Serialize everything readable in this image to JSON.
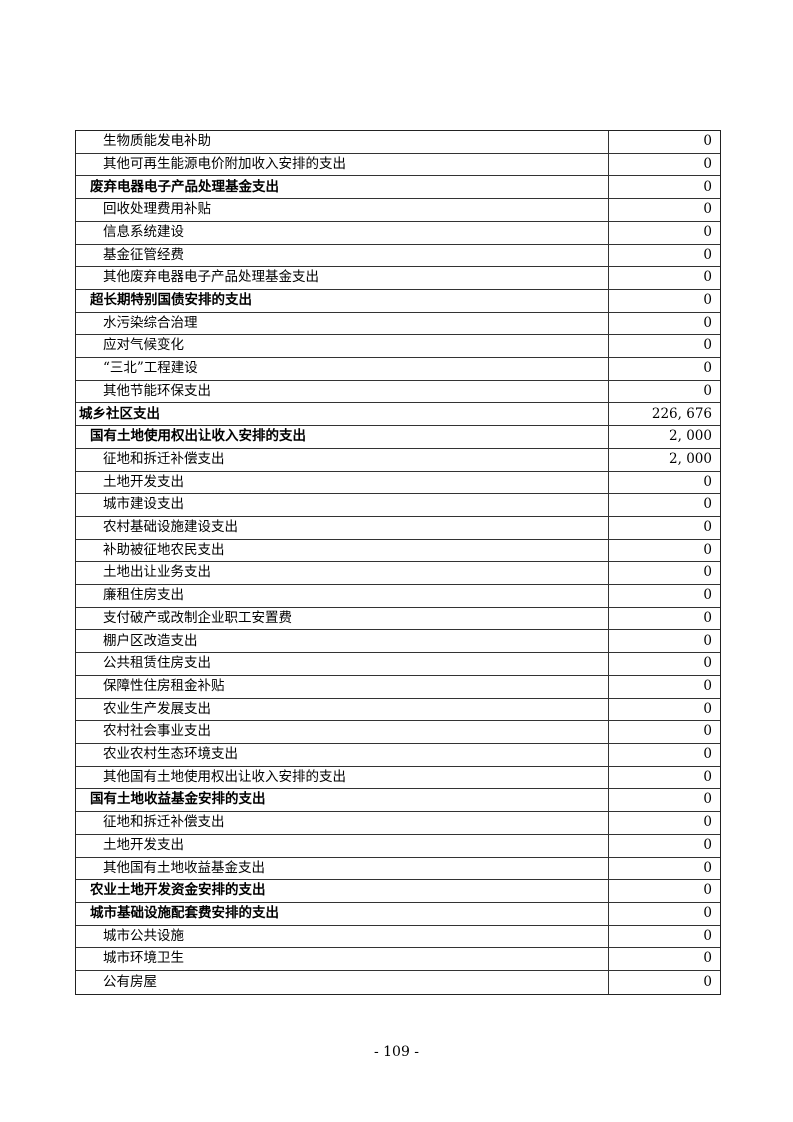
{
  "page": {
    "background_color": "#ffffff",
    "text_color": "#000000",
    "border_color": "#333333",
    "footer": {
      "page_number": "- 109 -"
    }
  },
  "table": {
    "columns": [
      "item",
      "amount"
    ],
    "rows": [
      {
        "label": "生物质能发电补助",
        "value": "0",
        "level": 2,
        "bold": false
      },
      {
        "label": "其他可再生能源电价附加收入安排的支出",
        "value": "0",
        "level": 2,
        "bold": false
      },
      {
        "label": "废弃电器电子产品处理基金支出",
        "value": "0",
        "level": 1,
        "bold": true
      },
      {
        "label": "回收处理费用补贴",
        "value": "0",
        "level": 2,
        "bold": false
      },
      {
        "label": "信息系统建设",
        "value": "0",
        "level": 2,
        "bold": false
      },
      {
        "label": "基金征管经费",
        "value": "0",
        "level": 2,
        "bold": false
      },
      {
        "label": "其他废弃电器电子产品处理基金支出",
        "value": "0",
        "level": 2,
        "bold": false
      },
      {
        "label": "超长期特别国债安排的支出",
        "value": "0",
        "level": 1,
        "bold": true
      },
      {
        "label": "水污染综合治理",
        "value": "0",
        "level": 2,
        "bold": false
      },
      {
        "label": "应对气候变化",
        "value": "0",
        "level": 2,
        "bold": false
      },
      {
        "label": "“三北”工程建设",
        "value": "0",
        "level": 2,
        "bold": false
      },
      {
        "label": "其他节能环保支出",
        "value": "0",
        "level": 2,
        "bold": false
      },
      {
        "label": "城乡社区支出",
        "value": "226, 676",
        "level": 0,
        "bold": true
      },
      {
        "label": "国有土地使用权出让收入安排的支出",
        "value": "2, 000",
        "level": 1,
        "bold": true
      },
      {
        "label": "征地和拆迁补偿支出",
        "value": "2, 000",
        "level": 2,
        "bold": false
      },
      {
        "label": "土地开发支出",
        "value": "0",
        "level": 2,
        "bold": false
      },
      {
        "label": "城市建设支出",
        "value": "0",
        "level": 2,
        "bold": false
      },
      {
        "label": "农村基础设施建设支出",
        "value": "0",
        "level": 2,
        "bold": false
      },
      {
        "label": "补助被征地农民支出",
        "value": "0",
        "level": 2,
        "bold": false
      },
      {
        "label": "土地出让业务支出",
        "value": "0",
        "level": 2,
        "bold": false
      },
      {
        "label": "廉租住房支出",
        "value": "0",
        "level": 2,
        "bold": false
      },
      {
        "label": "支付破产或改制企业职工安置费",
        "value": "0",
        "level": 2,
        "bold": false
      },
      {
        "label": "棚户区改造支出",
        "value": "0",
        "level": 2,
        "bold": false
      },
      {
        "label": "公共租赁住房支出",
        "value": "0",
        "level": 2,
        "bold": false
      },
      {
        "label": "保障性住房租金补贴",
        "value": "0",
        "level": 2,
        "bold": false
      },
      {
        "label": "农业生产发展支出",
        "value": "0",
        "level": 2,
        "bold": false
      },
      {
        "label": "农村社会事业支出",
        "value": "0",
        "level": 2,
        "bold": false
      },
      {
        "label": "农业农村生态环境支出",
        "value": "0",
        "level": 2,
        "bold": false
      },
      {
        "label": "其他国有土地使用权出让收入安排的支出",
        "value": "0",
        "level": 2,
        "bold": false
      },
      {
        "label": "国有土地收益基金安排的支出",
        "value": "0",
        "level": 1,
        "bold": true
      },
      {
        "label": "征地和拆迁补偿支出",
        "value": "0",
        "level": 2,
        "bold": false
      },
      {
        "label": "土地开发支出",
        "value": "0",
        "level": 2,
        "bold": false
      },
      {
        "label": "其他国有土地收益基金支出",
        "value": "0",
        "level": 2,
        "bold": false
      },
      {
        "label": "农业土地开发资金安排的支出",
        "value": "0",
        "level": 1,
        "bold": true
      },
      {
        "label": "城市基础设施配套费安排的支出",
        "value": "0",
        "level": 1,
        "bold": true
      },
      {
        "label": "城市公共设施",
        "value": "0",
        "level": 2,
        "bold": false
      },
      {
        "label": "城市环境卫生",
        "value": "0",
        "level": 2,
        "bold": false
      },
      {
        "label": "公有房屋",
        "value": "0",
        "level": 2,
        "bold": false
      }
    ]
  }
}
